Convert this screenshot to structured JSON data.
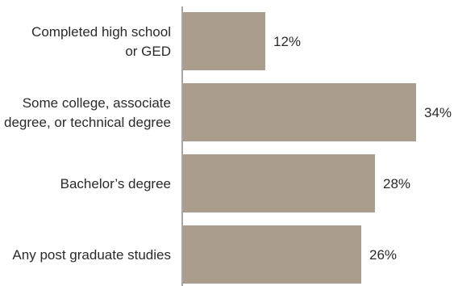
{
  "chart_data": {
    "type": "bar",
    "orientation": "horizontal",
    "categories": [
      [
        "Completed high school",
        "or GED"
      ],
      [
        "Some college, associate",
        "degree, or technical degree"
      ],
      [
        "Bachelor’s degree"
      ],
      [
        "Any post graduate studies"
      ]
    ],
    "values": [
      12,
      34,
      28,
      26
    ],
    "value_labels": [
      "12%",
      "34%",
      "28%",
      "26%"
    ],
    "unit": "%",
    "xlim": [
      0,
      40
    ],
    "title": "",
    "xlabel": "",
    "ylabel": "",
    "grid": false,
    "legend": "none",
    "colors": {
      "bar": "#ab9d8d",
      "axis": "#8a8a8a",
      "text": "#2a2a2a"
    }
  }
}
